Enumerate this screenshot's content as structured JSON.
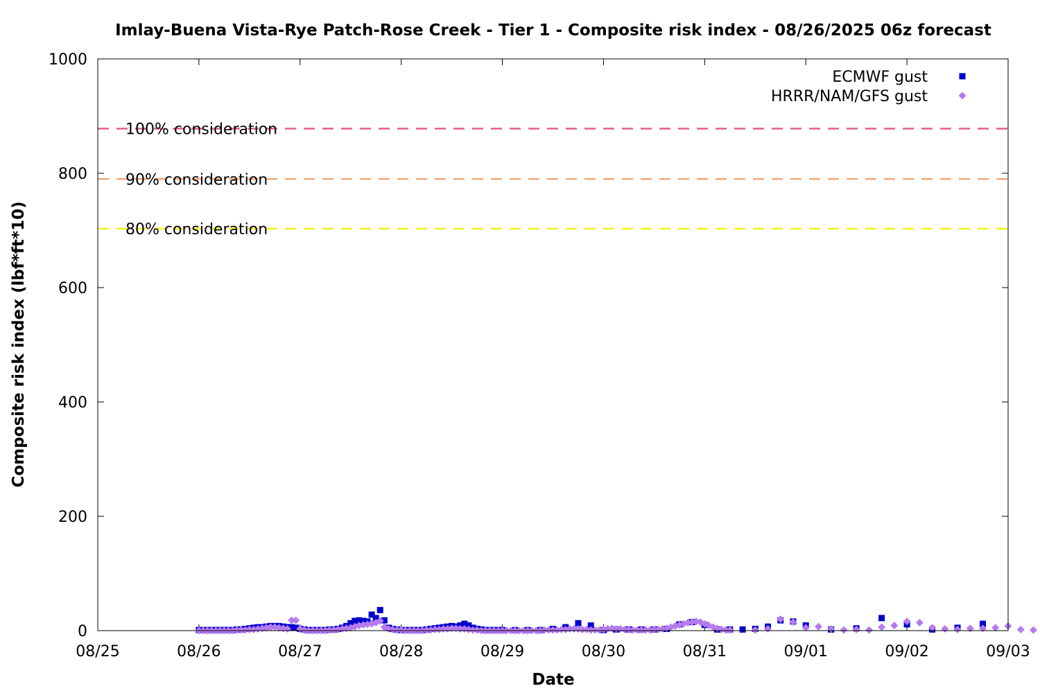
{
  "chart_data": {
    "type": "scatter",
    "title": "Imlay-Buena Vista-Rye Patch-Rose Creek - Tier 1 - Composite risk index - 08/26/2025 06z forecast",
    "xlabel": "Date",
    "ylabel": "Composite risk index (lbf*ft*10)",
    "xlim": [
      "2025-08-25T00:00",
      "2025-09-03T00:00"
    ],
    "ylim": [
      0,
      1000
    ],
    "x_tick_labels": [
      "08/25",
      "08/26",
      "08/27",
      "08/28",
      "08/29",
      "08/30",
      "08/31",
      "09/01",
      "09/02",
      "09/03"
    ],
    "y_ticks": [
      0,
      200,
      400,
      600,
      800,
      1000
    ],
    "grid": false,
    "legend_position": "top-right",
    "reference_lines": [
      {
        "label": "100% consideration",
        "value": 878,
        "color": "#e0607e"
      },
      {
        "label": "90% consideration",
        "value": 790,
        "color": "#f4a77a"
      },
      {
        "label": "80% consideration",
        "value": 703,
        "color": "#f0f01a"
      }
    ],
    "series": [
      {
        "name": "ECMWF gust",
        "marker": "square",
        "color": "#0000cd",
        "points": [
          [
            "2025-08-26T00:00",
            1
          ],
          [
            "2025-08-26T01:00",
            1
          ],
          [
            "2025-08-26T02:00",
            1
          ],
          [
            "2025-08-26T03:00",
            1
          ],
          [
            "2025-08-26T04:00",
            1
          ],
          [
            "2025-08-26T05:00",
            1
          ],
          [
            "2025-08-26T06:00",
            1
          ],
          [
            "2025-08-26T07:00",
            1
          ],
          [
            "2025-08-26T08:00",
            1
          ],
          [
            "2025-08-26T09:00",
            2
          ],
          [
            "2025-08-26T10:00",
            2
          ],
          [
            "2025-08-26T11:00",
            3
          ],
          [
            "2025-08-26T12:00",
            4
          ],
          [
            "2025-08-26T13:00",
            5
          ],
          [
            "2025-08-26T14:00",
            6
          ],
          [
            "2025-08-26T15:00",
            6
          ],
          [
            "2025-08-26T16:00",
            7
          ],
          [
            "2025-08-26T17:00",
            8
          ],
          [
            "2025-08-26T18:00",
            8
          ],
          [
            "2025-08-26T19:00",
            8
          ],
          [
            "2025-08-26T20:00",
            7
          ],
          [
            "2025-08-26T21:00",
            6
          ],
          [
            "2025-08-26T22:00",
            6
          ],
          [
            "2025-08-26T23:00",
            5
          ],
          [
            "2025-08-27T00:00",
            3
          ],
          [
            "2025-08-27T01:00",
            2
          ],
          [
            "2025-08-27T02:00",
            1
          ],
          [
            "2025-08-27T03:00",
            1
          ],
          [
            "2025-08-27T04:00",
            1
          ],
          [
            "2025-08-27T05:00",
            1
          ],
          [
            "2025-08-27T06:00",
            1
          ],
          [
            "2025-08-27T07:00",
            2
          ],
          [
            "2025-08-27T08:00",
            2
          ],
          [
            "2025-08-27T09:00",
            3
          ],
          [
            "2025-08-27T10:00",
            5
          ],
          [
            "2025-08-27T11:00",
            8
          ],
          [
            "2025-08-27T12:00",
            13
          ],
          [
            "2025-08-27T13:00",
            17
          ],
          [
            "2025-08-27T14:00",
            18
          ],
          [
            "2025-08-27T15:00",
            17
          ],
          [
            "2025-08-27T16:00",
            16
          ],
          [
            "2025-08-27T17:00",
            28
          ],
          [
            "2025-08-27T18:00",
            22
          ],
          [
            "2025-08-27T19:00",
            36
          ],
          [
            "2025-08-27T20:00",
            18
          ],
          [
            "2025-08-27T21:00",
            5
          ],
          [
            "2025-08-27T22:00",
            3
          ],
          [
            "2025-08-27T23:00",
            2
          ],
          [
            "2025-08-28T00:00",
            1
          ],
          [
            "2025-08-28T01:00",
            1
          ],
          [
            "2025-08-28T02:00",
            1
          ],
          [
            "2025-08-28T03:00",
            1
          ],
          [
            "2025-08-28T04:00",
            1
          ],
          [
            "2025-08-28T05:00",
            1
          ],
          [
            "2025-08-28T06:00",
            2
          ],
          [
            "2025-08-28T07:00",
            3
          ],
          [
            "2025-08-28T08:00",
            4
          ],
          [
            "2025-08-28T09:00",
            5
          ],
          [
            "2025-08-28T10:00",
            6
          ],
          [
            "2025-08-28T11:00",
            7
          ],
          [
            "2025-08-28T12:00",
            8
          ],
          [
            "2025-08-28T13:00",
            7
          ],
          [
            "2025-08-28T14:00",
            9
          ],
          [
            "2025-08-28T15:00",
            12
          ],
          [
            "2025-08-28T16:00",
            9
          ],
          [
            "2025-08-28T17:00",
            5
          ],
          [
            "2025-08-28T18:00",
            3
          ],
          [
            "2025-08-28T19:00",
            2
          ],
          [
            "2025-08-28T20:00",
            1
          ],
          [
            "2025-08-28T21:00",
            1
          ],
          [
            "2025-08-28T22:00",
            1
          ],
          [
            "2025-08-28T23:00",
            1
          ],
          [
            "2025-08-29T00:00",
            1
          ],
          [
            "2025-08-29T03:00",
            1
          ],
          [
            "2025-08-29T06:00",
            1
          ],
          [
            "2025-08-29T09:00",
            1
          ],
          [
            "2025-08-29T12:00",
            3
          ],
          [
            "2025-08-29T15:00",
            6
          ],
          [
            "2025-08-29T18:00",
            13
          ],
          [
            "2025-08-29T21:00",
            9
          ],
          [
            "2025-08-30T00:00",
            1
          ],
          [
            "2025-08-30T03:00",
            2
          ],
          [
            "2025-08-30T06:00",
            2
          ],
          [
            "2025-08-30T09:00",
            2
          ],
          [
            "2025-08-30T12:00",
            2
          ],
          [
            "2025-08-30T15:00",
            3
          ],
          [
            "2025-08-30T18:00",
            11
          ],
          [
            "2025-08-30T21:00",
            15
          ],
          [
            "2025-08-31T00:00",
            10
          ],
          [
            "2025-08-31T03:00",
            2
          ],
          [
            "2025-08-31T06:00",
            2
          ],
          [
            "2025-08-31T09:00",
            2
          ],
          [
            "2025-08-31T12:00",
            3
          ],
          [
            "2025-08-31T15:00",
            7
          ],
          [
            "2025-08-31T18:00",
            18
          ],
          [
            "2025-08-31T21:00",
            16
          ],
          [
            "2025-09-01T00:00",
            9
          ],
          [
            "2025-09-01T06:00",
            2
          ],
          [
            "2025-09-01T12:00",
            4
          ],
          [
            "2025-09-01T18:00",
            22
          ],
          [
            "2025-09-02T00:00",
            11
          ],
          [
            "2025-09-02T06:00",
            2
          ],
          [
            "2025-09-02T12:00",
            5
          ],
          [
            "2025-09-02T18:00",
            12
          ]
        ]
      },
      {
        "name": "HRRR/NAM/GFS gust",
        "marker": "diamond",
        "color": "#b57bee",
        "points": [
          [
            "2025-08-26T00:00",
            0
          ],
          [
            "2025-08-26T01:00",
            0
          ],
          [
            "2025-08-26T02:00",
            0
          ],
          [
            "2025-08-26T03:00",
            0
          ],
          [
            "2025-08-26T04:00",
            0
          ],
          [
            "2025-08-26T05:00",
            0
          ],
          [
            "2025-08-26T06:00",
            0
          ],
          [
            "2025-08-26T07:00",
            0
          ],
          [
            "2025-08-26T08:00",
            0
          ],
          [
            "2025-08-26T09:00",
            1
          ],
          [
            "2025-08-26T10:00",
            1
          ],
          [
            "2025-08-26T11:00",
            1
          ],
          [
            "2025-08-26T12:00",
            2
          ],
          [
            "2025-08-26T13:00",
            2
          ],
          [
            "2025-08-26T14:00",
            3
          ],
          [
            "2025-08-26T15:00",
            4
          ],
          [
            "2025-08-26T16:00",
            5
          ],
          [
            "2025-08-26T17:00",
            6
          ],
          [
            "2025-08-26T18:00",
            6
          ],
          [
            "2025-08-26T19:00",
            5
          ],
          [
            "2025-08-26T20:00",
            4
          ],
          [
            "2025-08-26T21:00",
            3
          ],
          [
            "2025-08-26T22:00",
            18
          ],
          [
            "2025-08-26T23:00",
            18
          ],
          [
            "2025-08-27T00:00",
            3
          ],
          [
            "2025-08-27T01:00",
            1
          ],
          [
            "2025-08-27T02:00",
            0
          ],
          [
            "2025-08-27T03:00",
            0
          ],
          [
            "2025-08-27T04:00",
            0
          ],
          [
            "2025-08-27T05:00",
            0
          ],
          [
            "2025-08-27T06:00",
            0
          ],
          [
            "2025-08-27T07:00",
            1
          ],
          [
            "2025-08-27T08:00",
            1
          ],
          [
            "2025-08-27T09:00",
            2
          ],
          [
            "2025-08-27T10:00",
            3
          ],
          [
            "2025-08-27T11:00",
            4
          ],
          [
            "2025-08-27T12:00",
            5
          ],
          [
            "2025-08-27T13:00",
            7
          ],
          [
            "2025-08-27T14:00",
            9
          ],
          [
            "2025-08-27T15:00",
            10
          ],
          [
            "2025-08-27T16:00",
            11
          ],
          [
            "2025-08-27T17:00",
            12
          ],
          [
            "2025-08-27T18:00",
            14
          ],
          [
            "2025-08-27T19:00",
            17
          ],
          [
            "2025-08-27T20:00",
            6
          ],
          [
            "2025-08-27T21:00",
            3
          ],
          [
            "2025-08-27T22:00",
            2
          ],
          [
            "2025-08-27T23:00",
            1
          ],
          [
            "2025-08-28T00:00",
            1
          ],
          [
            "2025-08-28T01:00",
            0
          ],
          [
            "2025-08-28T02:00",
            0
          ],
          [
            "2025-08-28T03:00",
            0
          ],
          [
            "2025-08-28T04:00",
            0
          ],
          [
            "2025-08-28T05:00",
            0
          ],
          [
            "2025-08-28T06:00",
            1
          ],
          [
            "2025-08-28T07:00",
            1
          ],
          [
            "2025-08-28T08:00",
            2
          ],
          [
            "2025-08-28T09:00",
            2
          ],
          [
            "2025-08-28T10:00",
            3
          ],
          [
            "2025-08-28T11:00",
            3
          ],
          [
            "2025-08-28T12:00",
            4
          ],
          [
            "2025-08-28T13:00",
            4
          ],
          [
            "2025-08-28T14:00",
            3
          ],
          [
            "2025-08-28T15:00",
            3
          ],
          [
            "2025-08-28T16:00",
            2
          ],
          [
            "2025-08-28T17:00",
            1
          ],
          [
            "2025-08-28T18:00",
            1
          ],
          [
            "2025-08-28T19:00",
            0
          ],
          [
            "2025-08-28T20:00",
            0
          ],
          [
            "2025-08-28T21:00",
            0
          ],
          [
            "2025-08-28T22:00",
            0
          ],
          [
            "2025-08-28T23:00",
            0
          ],
          [
            "2025-08-29T00:00",
            0
          ],
          [
            "2025-08-29T01:00",
            0
          ],
          [
            "2025-08-29T02:00",
            0
          ],
          [
            "2025-08-29T03:00",
            0
          ],
          [
            "2025-08-29T04:00",
            0
          ],
          [
            "2025-08-29T05:00",
            0
          ],
          [
            "2025-08-29T06:00",
            0
          ],
          [
            "2025-08-29T07:00",
            0
          ],
          [
            "2025-08-29T08:00",
            0
          ],
          [
            "2025-08-29T09:00",
            0
          ],
          [
            "2025-08-29T10:00",
            1
          ],
          [
            "2025-08-29T11:00",
            1
          ],
          [
            "2025-08-29T12:00",
            1
          ],
          [
            "2025-08-29T13:00",
            1
          ],
          [
            "2025-08-29T14:00",
            2
          ],
          [
            "2025-08-29T15:00",
            2
          ],
          [
            "2025-08-29T16:00",
            3
          ],
          [
            "2025-08-29T17:00",
            3
          ],
          [
            "2025-08-29T18:00",
            3
          ],
          [
            "2025-08-29T19:00",
            2
          ],
          [
            "2025-08-29T20:00",
            2
          ],
          [
            "2025-08-29T21:00",
            1
          ],
          [
            "2025-08-29T22:00",
            1
          ],
          [
            "2025-08-29T23:00",
            1
          ],
          [
            "2025-08-30T00:00",
            2
          ],
          [
            "2025-08-30T01:00",
            3
          ],
          [
            "2025-08-30T02:00",
            4
          ],
          [
            "2025-08-30T03:00",
            3
          ],
          [
            "2025-08-30T04:00",
            3
          ],
          [
            "2025-08-30T05:00",
            2
          ],
          [
            "2025-08-30T06:00",
            2
          ],
          [
            "2025-08-30T07:00",
            1
          ],
          [
            "2025-08-30T08:00",
            1
          ],
          [
            "2025-08-30T09:00",
            1
          ],
          [
            "2025-08-30T10:00",
            1
          ],
          [
            "2025-08-30T11:00",
            1
          ],
          [
            "2025-08-30T12:00",
            2
          ],
          [
            "2025-08-30T13:00",
            2
          ],
          [
            "2025-08-30T14:00",
            3
          ],
          [
            "2025-08-30T15:00",
            4
          ],
          [
            "2025-08-30T16:00",
            6
          ],
          [
            "2025-08-30T17:00",
            8
          ],
          [
            "2025-08-30T18:00",
            10
          ],
          [
            "2025-08-30T19:00",
            12
          ],
          [
            "2025-08-30T20:00",
            14
          ],
          [
            "2025-08-30T21:00",
            15
          ],
          [
            "2025-08-30T22:00",
            16
          ],
          [
            "2025-08-30T23:00",
            15
          ],
          [
            "2025-08-31T00:00",
            12
          ],
          [
            "2025-08-31T01:00",
            9
          ],
          [
            "2025-08-31T02:00",
            6
          ],
          [
            "2025-08-31T03:00",
            4
          ],
          [
            "2025-08-31T04:00",
            2
          ],
          [
            "2025-08-31T05:00",
            1
          ],
          [
            "2025-08-31T06:00",
            1
          ],
          [
            "2025-08-31T12:00",
            1
          ],
          [
            "2025-08-31T15:00",
            3
          ],
          [
            "2025-08-31T18:00",
            20
          ],
          [
            "2025-08-31T21:00",
            15
          ],
          [
            "2025-09-01T00:00",
            5
          ],
          [
            "2025-09-01T03:00",
            7
          ],
          [
            "2025-09-01T06:00",
            3
          ],
          [
            "2025-09-01T09:00",
            1
          ],
          [
            "2025-09-01T12:00",
            2
          ],
          [
            "2025-09-01T15:00",
            1
          ],
          [
            "2025-09-01T18:00",
            6
          ],
          [
            "2025-09-01T21:00",
            9
          ],
          [
            "2025-09-02T00:00",
            16
          ],
          [
            "2025-09-02T03:00",
            14
          ],
          [
            "2025-09-02T06:00",
            5
          ],
          [
            "2025-09-02T09:00",
            3
          ],
          [
            "2025-09-02T12:00",
            2
          ],
          [
            "2025-09-02T15:00",
            4
          ],
          [
            "2025-09-02T18:00",
            4
          ],
          [
            "2025-09-02T21:00",
            5
          ],
          [
            "2025-09-03T00:00",
            8
          ],
          [
            "2025-09-03T03:00",
            2
          ],
          [
            "2025-09-03T06:00",
            1
          ]
        ]
      }
    ]
  }
}
